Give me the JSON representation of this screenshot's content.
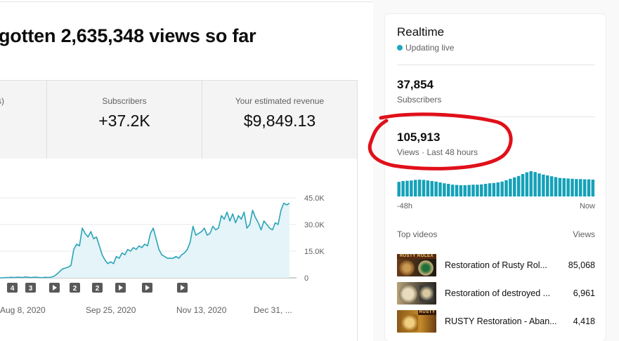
{
  "headline": "gotten 2,635,348 views so far",
  "metrics": [
    {
      "label": "s)",
      "value": ""
    },
    {
      "label": "Subscribers",
      "value": "+37.2K"
    },
    {
      "label": "Your estimated revenue",
      "value": "$9,849.13"
    }
  ],
  "chart_data": {
    "type": "area",
    "y_ticks": [
      "45.0K",
      "30.0K",
      "15.0K",
      "0"
    ],
    "ylim": [
      0,
      45000
    ],
    "x_ticks": [
      "Aug 8, 2020",
      "Sep 25, 2020",
      "Nov 13, 2020",
      "Dec 31, ..."
    ],
    "markers": [
      "4",
      "3",
      "▶",
      "2",
      "2",
      "▶",
      "▶",
      "▶"
    ],
    "series": [
      {
        "values": [
          0,
          0,
          200,
          100,
          300,
          200,
          400,
          300,
          200,
          500,
          300,
          200,
          400,
          300,
          200,
          100,
          300,
          200,
          400,
          900,
          2000,
          3500,
          5000,
          5500,
          6000,
          7000,
          16000,
          19000,
          18000,
          28000,
          25000,
          23000,
          26000,
          22000,
          23000,
          18000,
          13000,
          10000,
          8000,
          9000,
          8000,
          12000,
          11000,
          14000,
          13000,
          16000,
          15000,
          17000,
          16000,
          18000,
          17000,
          19000,
          18000,
          25000,
          28000,
          22000,
          16000,
          13000,
          12000,
          11000,
          11000,
          11000,
          12000,
          11000,
          13000,
          14000,
          16000,
          20000,
          29000,
          24000,
          25000,
          26000,
          28000,
          24000,
          25000,
          29000,
          27000,
          28000,
          35000,
          33000,
          37000,
          32000,
          36000,
          31000,
          35000,
          33000,
          37000,
          28000,
          30000,
          38000,
          34000,
          31000,
          27000,
          32000,
          30000,
          28000,
          27000,
          31000,
          30000,
          38000,
          42000,
          41000,
          42000
        ]
      }
    ]
  },
  "realtime": {
    "title": "Realtime",
    "live": "Updating live",
    "subscribers_value": "37,854",
    "subscribers_label": "Subscribers",
    "views_value": "105,913",
    "views_label": "Views · Last 48 hours",
    "hourly": [
      0.52,
      0.55,
      0.56,
      0.57,
      0.59,
      0.6,
      0.59,
      0.57,
      0.55,
      0.53,
      0.5,
      0.47,
      0.45,
      0.42,
      0.41,
      0.4,
      0.4,
      0.41,
      0.42,
      0.42,
      0.43,
      0.45,
      0.47,
      0.48,
      0.5,
      0.53,
      0.58,
      0.63,
      0.68,
      0.73,
      0.8,
      0.86,
      0.9,
      0.87,
      0.82,
      0.78,
      0.75,
      0.72,
      0.69,
      0.66,
      0.65,
      0.64,
      0.63,
      0.62,
      0.62,
      0.61,
      0.61,
      0.6
    ],
    "axis_start": "-48h",
    "axis_end": "Now",
    "top_videos_label": "Top videos",
    "views_col_label": "Views",
    "videos": [
      {
        "title": "Restoration of Rusty Rol...",
        "views": "85,068",
        "thumb_text": "RUSTY ROLEX"
      },
      {
        "title": "Restoration of destroyed ...",
        "views": "6,961",
        "thumb_text": ""
      },
      {
        "title": "RUSTY Restoration - Aban...",
        "views": "4,418",
        "thumb_text": "RUSTY"
      }
    ]
  },
  "colors": {
    "line": "#2aa3b8",
    "area": "#e4f4f8",
    "bar": "#15a1b8",
    "annotation": "#e0101a"
  }
}
